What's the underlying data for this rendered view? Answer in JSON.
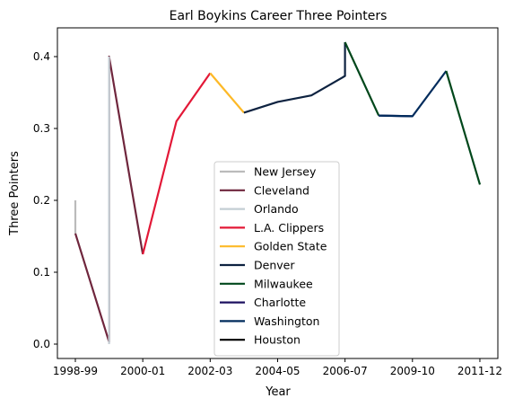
{
  "chart_data": {
    "type": "line",
    "title": "Earl Boykins Career Three Pointers",
    "xlabel": "Year",
    "ylabel": "Three Pointers",
    "x_ticks": [
      "1998-99",
      "2000-01",
      "2002-03",
      "2004-05",
      "2006-07",
      "2009-10",
      "2011-12"
    ],
    "y_ticks": [
      "0.0",
      "0.1",
      "0.2",
      "0.3",
      "0.4"
    ],
    "ylim": [
      -0.02,
      0.44
    ],
    "grid": false,
    "legend_position": "lower-center",
    "series": [
      {
        "name": "New Jersey",
        "color": "#bbbbbb",
        "points": [
          [
            0,
            0.2
          ],
          [
            0,
            0.154
          ]
        ]
      },
      {
        "name": "Cleveland",
        "color": "#6f263d",
        "points": [
          [
            0,
            0.154
          ],
          [
            1,
            0.003
          ],
          [
            1,
            0.4
          ],
          [
            2,
            0.125
          ]
        ]
      },
      {
        "name": "Orlando",
        "color": "#c4ced4",
        "points": [
          [
            1,
            0.0
          ],
          [
            1,
            0.4
          ]
        ]
      },
      {
        "name": "L.A. Clippers",
        "color": "#e31837",
        "points": [
          [
            2,
            0.125
          ],
          [
            3,
            0.31
          ],
          [
            4,
            0.377
          ]
        ]
      },
      {
        "name": "Golden State",
        "color": "#fdb927",
        "points": [
          [
            4,
            0.377
          ],
          [
            5,
            0.322
          ]
        ]
      },
      {
        "name": "Denver",
        "color": "#0d2240",
        "points": [
          [
            5,
            0.322
          ],
          [
            6,
            0.337
          ],
          [
            7,
            0.346
          ],
          [
            8,
            0.373
          ],
          [
            8,
            0.42
          ]
        ]
      },
      {
        "name": "Milwaukee",
        "color": "#00471b",
        "points": [
          [
            8,
            0.42
          ],
          [
            9,
            0.318
          ]
        ]
      },
      {
        "name": "Charlotte",
        "color": "#1d1160",
        "points": [
          [
            9,
            0.318
          ],
          [
            10,
            0.317
          ]
        ]
      },
      {
        "name": "Washington",
        "color": "#002b5c",
        "points": [
          [
            9,
            0.318
          ],
          [
            10,
            0.317
          ],
          [
            11,
            0.38
          ]
        ]
      },
      {
        "name": "Milwaukee",
        "color": "#00471b",
        "points": [
          [
            11,
            0.38
          ],
          [
            12,
            0.222
          ]
        ]
      },
      {
        "name": "Houston",
        "color": "#000000",
        "points": []
      }
    ],
    "legend": [
      {
        "name": "New Jersey",
        "color": "#bbbbbb"
      },
      {
        "name": "Cleveland",
        "color": "#6f263d"
      },
      {
        "name": "Orlando",
        "color": "#c4ced4"
      },
      {
        "name": "L.A. Clippers",
        "color": "#e31837"
      },
      {
        "name": "Golden State",
        "color": "#fdb927"
      },
      {
        "name": "Denver",
        "color": "#0d2240"
      },
      {
        "name": "Milwaukee",
        "color": "#00471b"
      },
      {
        "name": "Charlotte",
        "color": "#1d1160"
      },
      {
        "name": "Washington",
        "color": "#002b5c"
      },
      {
        "name": "Houston",
        "color": "#000000"
      }
    ]
  }
}
